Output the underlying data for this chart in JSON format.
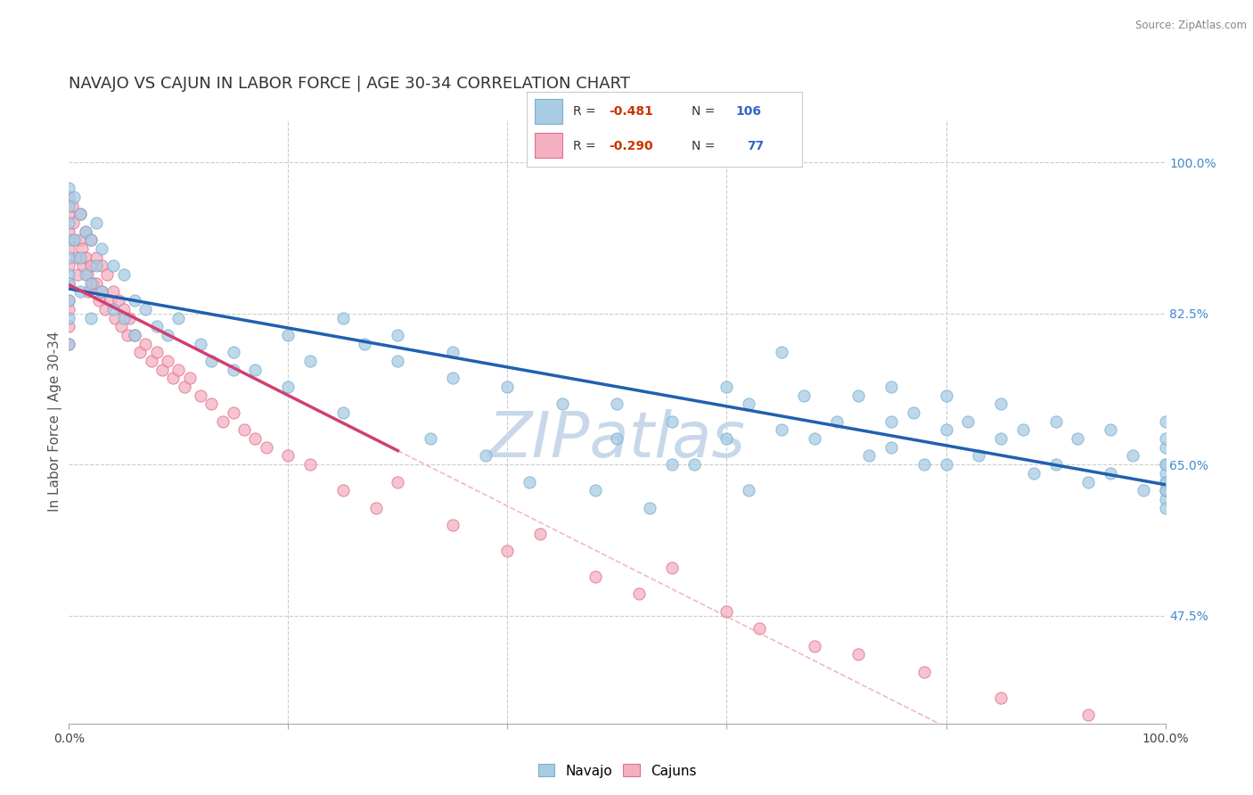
{
  "title": "NAVAJO VS CAJUN IN LABOR FORCE | AGE 30-34 CORRELATION CHART",
  "source": "Source: ZipAtlas.com",
  "ylabel": "In Labor Force | Age 30-34",
  "xlim": [
    0.0,
    1.0
  ],
  "ylim": [
    0.35,
    1.05
  ],
  "navajo_R": -0.481,
  "navajo_N": 106,
  "cajun_R": -0.29,
  "cajun_N": 77,
  "navajo_color": "#a8cce4",
  "cajun_color": "#f4b0c0",
  "navajo_edge": "#7ab0d0",
  "cajun_edge": "#e07090",
  "trend_navajo_color": "#2060b0",
  "trend_cajun_color": "#d04070",
  "trend_diagonal_color": "#f0b8c8",
  "background_color": "#ffffff",
  "watermark_color": "#c8d8ea",
  "title_fontsize": 13,
  "axis_label_fontsize": 11,
  "tick_fontsize": 10,
  "navajo_x": [
    0.0,
    0.0,
    0.0,
    0.0,
    0.0,
    0.0,
    0.0,
    0.0,
    0.0,
    0.0,
    0.005,
    0.005,
    0.01,
    0.01,
    0.01,
    0.015,
    0.015,
    0.02,
    0.02,
    0.02,
    0.025,
    0.025,
    0.03,
    0.03,
    0.04,
    0.04,
    0.05,
    0.05,
    0.06,
    0.06,
    0.07,
    0.08,
    0.09,
    0.1,
    0.12,
    0.13,
    0.15,
    0.17,
    0.2,
    0.22,
    0.25,
    0.27,
    0.3,
    0.3,
    0.35,
    0.35,
    0.4,
    0.45,
    0.5,
    0.5,
    0.55,
    0.55,
    0.6,
    0.6,
    0.62,
    0.65,
    0.65,
    0.67,
    0.68,
    0.7,
    0.72,
    0.73,
    0.75,
    0.75,
    0.75,
    0.77,
    0.78,
    0.8,
    0.8,
    0.8,
    0.82,
    0.83,
    0.85,
    0.85,
    0.87,
    0.88,
    0.9,
    0.9,
    0.92,
    0.93,
    0.95,
    0.95,
    0.97,
    0.98,
    1.0,
    1.0,
    1.0,
    1.0,
    1.0,
    1.0,
    1.0,
    1.0,
    1.0,
    1.0,
    1.0,
    1.0,
    0.15,
    0.2,
    0.25,
    0.33,
    0.38,
    0.42,
    0.48,
    0.53,
    0.57,
    0.62
  ],
  "navajo_y": [
    0.97,
    0.95,
    0.93,
    0.91,
    0.89,
    0.87,
    0.86,
    0.84,
    0.82,
    0.79,
    0.96,
    0.91,
    0.94,
    0.89,
    0.85,
    0.92,
    0.87,
    0.91,
    0.86,
    0.82,
    0.93,
    0.88,
    0.9,
    0.85,
    0.88,
    0.83,
    0.87,
    0.82,
    0.84,
    0.8,
    0.83,
    0.81,
    0.8,
    0.82,
    0.79,
    0.77,
    0.78,
    0.76,
    0.8,
    0.77,
    0.82,
    0.79,
    0.8,
    0.77,
    0.78,
    0.75,
    0.74,
    0.72,
    0.72,
    0.68,
    0.7,
    0.65,
    0.74,
    0.68,
    0.72,
    0.78,
    0.69,
    0.73,
    0.68,
    0.7,
    0.73,
    0.66,
    0.74,
    0.7,
    0.67,
    0.71,
    0.65,
    0.73,
    0.69,
    0.65,
    0.7,
    0.66,
    0.72,
    0.68,
    0.69,
    0.64,
    0.7,
    0.65,
    0.68,
    0.63,
    0.69,
    0.64,
    0.66,
    0.62,
    0.7,
    0.67,
    0.65,
    0.63,
    0.61,
    0.64,
    0.62,
    0.6,
    0.68,
    0.65,
    0.63,
    0.62,
    0.76,
    0.74,
    0.71,
    0.68,
    0.66,
    0.63,
    0.62,
    0.6,
    0.65,
    0.62
  ],
  "cajun_x": [
    0.0,
    0.0,
    0.0,
    0.0,
    0.0,
    0.0,
    0.0,
    0.0,
    0.0,
    0.0,
    0.003,
    0.004,
    0.005,
    0.007,
    0.008,
    0.01,
    0.01,
    0.012,
    0.013,
    0.015,
    0.015,
    0.017,
    0.018,
    0.02,
    0.02,
    0.022,
    0.025,
    0.025,
    0.027,
    0.03,
    0.03,
    0.033,
    0.035,
    0.038,
    0.04,
    0.042,
    0.045,
    0.048,
    0.05,
    0.053,
    0.055,
    0.06,
    0.065,
    0.07,
    0.075,
    0.08,
    0.085,
    0.09,
    0.095,
    0.1,
    0.105,
    0.11,
    0.12,
    0.13,
    0.14,
    0.15,
    0.16,
    0.17,
    0.18,
    0.2,
    0.22,
    0.25,
    0.28,
    0.3,
    0.35,
    0.4,
    0.43,
    0.48,
    0.52,
    0.55,
    0.6,
    0.63,
    0.68,
    0.72,
    0.78,
    0.85,
    0.93
  ],
  "cajun_y": [
    0.96,
    0.94,
    0.92,
    0.9,
    0.88,
    0.86,
    0.84,
    0.83,
    0.81,
    0.79,
    0.95,
    0.93,
    0.91,
    0.89,
    0.87,
    0.94,
    0.91,
    0.9,
    0.88,
    0.92,
    0.89,
    0.87,
    0.85,
    0.91,
    0.88,
    0.86,
    0.89,
    0.86,
    0.84,
    0.88,
    0.85,
    0.83,
    0.87,
    0.84,
    0.85,
    0.82,
    0.84,
    0.81,
    0.83,
    0.8,
    0.82,
    0.8,
    0.78,
    0.79,
    0.77,
    0.78,
    0.76,
    0.77,
    0.75,
    0.76,
    0.74,
    0.75,
    0.73,
    0.72,
    0.7,
    0.71,
    0.69,
    0.68,
    0.67,
    0.66,
    0.65,
    0.62,
    0.6,
    0.63,
    0.58,
    0.55,
    0.57,
    0.52,
    0.5,
    0.53,
    0.48,
    0.46,
    0.44,
    0.43,
    0.41,
    0.38,
    0.36
  ]
}
